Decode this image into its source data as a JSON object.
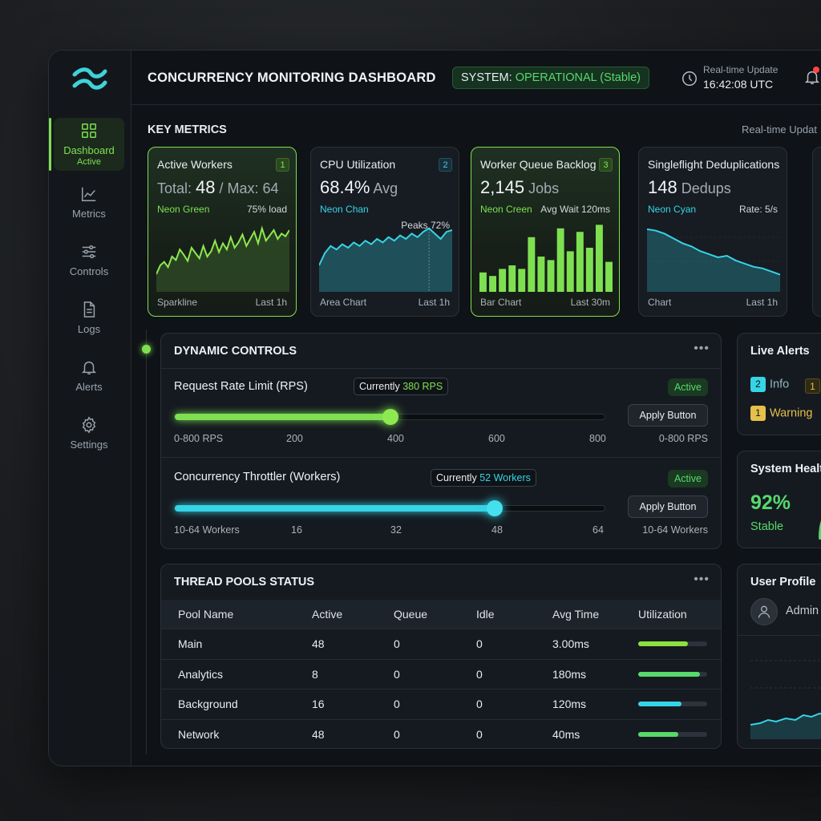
{
  "header": {
    "title": "CONCURRENCY MONITORING DASHBOARD",
    "system_prefix": "SYSTEM:",
    "system_status": "OPERATIONAL (Stable)",
    "realtime_label": "Real-time Update",
    "time": "16:42:08 UTC"
  },
  "sidebar": {
    "items": [
      {
        "label": "Dashboard",
        "sub": "Active",
        "icon": "grid-icon"
      },
      {
        "label": "Metrics",
        "icon": "line-chart-icon"
      },
      {
        "label": "Controls",
        "icon": "sliders-icon"
      },
      {
        "label": "Logs",
        "icon": "document-icon"
      },
      {
        "label": "Alerts",
        "icon": "bell-icon"
      },
      {
        "label": "Settings",
        "icon": "gear-icon"
      }
    ]
  },
  "key_metrics": {
    "title": "KEY METRICS",
    "realtime": "Real-time Updat",
    "cards": [
      {
        "title": "Active Workers",
        "num": "1",
        "val_prefix": "Total: ",
        "val": "48",
        "val_suffix": " / Max: 64",
        "sub_l": "Neon Green",
        "sub_r": "75% load",
        "foot_l": "Sparkline",
        "foot_r": "Last 1h"
      },
      {
        "title": "CPU Utilization",
        "num": "2",
        "val": "68.4%",
        "val_suffix": " Avg",
        "sub_l": "Neon Chan",
        "peak": "Peaks 72%",
        "foot_l": "Area Chart",
        "foot_r": "Last 1h"
      },
      {
        "title": "Worker Queue Backlog",
        "num": "3",
        "val": "2,145",
        "val_suffix": " Jobs",
        "sub_l": "Neon Creen",
        "sub_r": "Avg Wait 120ms",
        "foot_l": "Bar Chart",
        "foot_r": "Last 30m"
      },
      {
        "title": "Singleflight Deduplications",
        "val": "148",
        "val_suffix": " Dedups",
        "sub_l": "Neon Cyan",
        "sub_r": "Rate: 5/s",
        "foot_l": "Chart",
        "foot_r": "Last 1h"
      }
    ]
  },
  "chart_data": [
    {
      "type": "line",
      "title": "Active Workers",
      "values": [
        20,
        30,
        34,
        28,
        40,
        36,
        48,
        42,
        35,
        50,
        44,
        38,
        52,
        40,
        46,
        58,
        45,
        55,
        48,
        62,
        50,
        56,
        65,
        52,
        60,
        68,
        55,
        72,
        58,
        64,
        70,
        60,
        66,
        63,
        70
      ]
    },
    {
      "type": "area",
      "title": "CPU Utilization",
      "values": [
        30,
        44,
        52,
        48,
        54,
        50,
        56,
        52,
        58,
        54,
        60,
        56,
        62,
        58,
        64,
        60,
        66,
        62,
        68,
        72,
        66,
        60,
        68,
        70
      ]
    },
    {
      "type": "bar",
      "title": "Worker Queue Backlog",
      "values": [
        22,
        18,
        26,
        30,
        26,
        62,
        40,
        36,
        72,
        46,
        68,
        50,
        76,
        34
      ]
    },
    {
      "type": "area",
      "title": "Singleflight Deduplications",
      "values": [
        80,
        78,
        74,
        68,
        62,
        58,
        52,
        48,
        44,
        46,
        40,
        36,
        32,
        30,
        26,
        22
      ]
    }
  ],
  "controls": {
    "title": "DYNAMIC CONTROLS",
    "dots": "•••",
    "rate": {
      "label": "Request Rate Limit (RPS)",
      "current_prefix": "Currently ",
      "current": "380 RPS",
      "status": "Active",
      "value": 400,
      "range": "0-800 RPS",
      "ticks": [
        "200",
        "400",
        "600",
        "800"
      ],
      "range_right": "0-800 RPS",
      "button": "Apply Button"
    },
    "throttle": {
      "label": "Concurrency Throttler (Workers)",
      "current_prefix": "Currently ",
      "current": "52 Workers",
      "status": "Active",
      "value": 48,
      "range": "10-64 Workers",
      "ticks": [
        "16",
        "32",
        "48",
        "64"
      ],
      "range_right": "10-64 Workers",
      "button": "Apply Button"
    }
  },
  "pools": {
    "title": "THREAD POOLS STATUS",
    "dots": "•••",
    "columns": [
      "Pool Name",
      "Active",
      "Queue",
      "Idle",
      "Avg Time",
      "Utilization"
    ],
    "rows": [
      {
        "name": "Main",
        "active": "48",
        "queue": "0",
        "idle": "0",
        "avg": "3.00ms",
        "util": 0.72,
        "color": "#8ee03c"
      },
      {
        "name": "Analytics",
        "active": "8",
        "queue": "0",
        "idle": "0",
        "avg": "180ms",
        "util": 0.9,
        "color": "#57d96b"
      },
      {
        "name": "Background",
        "active": "16",
        "queue": "0",
        "idle": "0",
        "avg": "120ms",
        "util": 0.63,
        "color": "#35d4e6"
      },
      {
        "name": "Network",
        "active": "48",
        "queue": "0",
        "idle": "0",
        "avg": "40ms",
        "util": 0.58,
        "color": "#57d96b"
      }
    ]
  },
  "live_alerts": {
    "title": "Live Alerts",
    "info_count": "2",
    "info": "Info",
    "warn_count": "1",
    "warning": "Warning",
    "extra_count": "1"
  },
  "system_health": {
    "title": "System Healt",
    "value": "92%",
    "status": "Stable"
  },
  "user_profile": {
    "title": "User Profile",
    "name": "Admin"
  },
  "colors": {
    "accent_green": "#7ee051",
    "accent_cyan": "#35d4e6",
    "ok_green": "#57d96b"
  }
}
